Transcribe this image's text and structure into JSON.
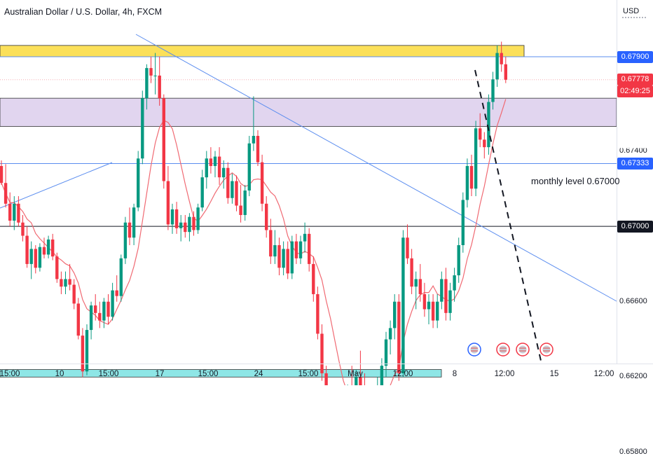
{
  "header": {
    "title": "Australian Dollar / U.S. Dollar, 4h, FXCM",
    "currency": "USD"
  },
  "price_axis": {
    "ticks": [
      {
        "value": 0.679,
        "label": "0.67900",
        "bg": "#2962ff"
      },
      {
        "value": 0.67778,
        "label": "0.67778",
        "bg": "#f23645"
      },
      {
        "value": 0.67333,
        "label": "0.67333",
        "bg": "#2962ff"
      },
      {
        "value": 0.67,
        "label": "0.67000",
        "bg": "#131722"
      },
      {
        "value": 0.666,
        "label": "0.66600",
        "bg": ""
      },
      {
        "value": 0.662,
        "label": "0.66200",
        "bg": ""
      },
      {
        "value": 0.658,
        "label": "0.65800",
        "bg": ""
      }
    ],
    "partial_label": "0.67400",
    "countdown": "02:49:25"
  },
  "time_axis": [
    "15:00",
    "10",
    "15:00",
    "17",
    "15:00",
    "24",
    "15:00",
    "May",
    "12:00",
    "8",
    "12:00",
    "15",
    "12:00"
  ],
  "annotations": {
    "monthly_level": "monthly level 0.67000"
  },
  "colors": {
    "up": "#089981",
    "down": "#f23645",
    "ma": "#f06a73",
    "trend": "#5b8def",
    "resistance_zone": "#fbe05a",
    "mid_zone": "#e1d5ef",
    "support_zone": "#8ee6e6"
  },
  "chart_data": {
    "type": "candlestick",
    "symbol": "AUDUSD",
    "timeframe": "4h",
    "ylim": [
      0.656,
      0.6825
    ],
    "levels": [
      0.679,
      0.67778,
      0.67333,
      0.67
    ],
    "zones": [
      {
        "name": "resistance",
        "from": 0.679,
        "to": 0.6796
      },
      {
        "name": "range",
        "from": 0.6753,
        "to": 0.6768
      },
      {
        "name": "support",
        "from": 0.662,
        "to": 0.6624
      }
    ],
    "candles": [
      [
        0.6732,
        0.6735,
        0.6722,
        0.6723
      ],
      [
        0.6723,
        0.6733,
        0.671,
        0.6712
      ],
      [
        0.6712,
        0.6718,
        0.67,
        0.6703
      ],
      [
        0.6703,
        0.6716,
        0.6698,
        0.6712
      ],
      [
        0.6712,
        0.6716,
        0.67,
        0.6702
      ],
      [
        0.6702,
        0.6706,
        0.6692,
        0.6695
      ],
      [
        0.6695,
        0.67,
        0.6678,
        0.668
      ],
      [
        0.668,
        0.6692,
        0.6672,
        0.6688
      ],
      [
        0.6688,
        0.669,
        0.6675,
        0.6678
      ],
      [
        0.6678,
        0.6691,
        0.6676,
        0.6689
      ],
      [
        0.6689,
        0.6694,
        0.6683,
        0.6685
      ],
      [
        0.6685,
        0.6695,
        0.6683,
        0.6693
      ],
      [
        0.6693,
        0.6696,
        0.6682,
        0.6684
      ],
      [
        0.6684,
        0.6686,
        0.667,
        0.6672
      ],
      [
        0.6672,
        0.6676,
        0.6664,
        0.6668
      ],
      [
        0.6668,
        0.6676,
        0.6664,
        0.6672
      ],
      [
        0.6672,
        0.668,
        0.6666,
        0.6669
      ],
      [
        0.6669,
        0.6672,
        0.6656,
        0.6659
      ],
      [
        0.6659,
        0.6662,
        0.664,
        0.6642
      ],
      [
        0.6642,
        0.6646,
        0.662,
        0.6623
      ],
      [
        0.6623,
        0.6648,
        0.6621,
        0.6645
      ],
      [
        0.6645,
        0.666,
        0.664,
        0.6658
      ],
      [
        0.6658,
        0.6664,
        0.665,
        0.6654
      ],
      [
        0.6654,
        0.666,
        0.6646,
        0.665
      ],
      [
        0.665,
        0.6662,
        0.6646,
        0.666
      ],
      [
        0.666,
        0.6664,
        0.6648,
        0.6652
      ],
      [
        0.6652,
        0.667,
        0.665,
        0.6666
      ],
      [
        0.6666,
        0.6674,
        0.666,
        0.6663
      ],
      [
        0.6663,
        0.6685,
        0.666,
        0.6683
      ],
      [
        0.6683,
        0.6705,
        0.668,
        0.6702
      ],
      [
        0.6702,
        0.671,
        0.669,
        0.6694
      ],
      [
        0.6694,
        0.6712,
        0.669,
        0.671
      ],
      [
        0.671,
        0.674,
        0.6708,
        0.6736
      ],
      [
        0.6736,
        0.6772,
        0.6733,
        0.6768
      ],
      [
        0.6768,
        0.6786,
        0.6762,
        0.6784
      ],
      [
        0.6784,
        0.679,
        0.6776,
        0.678
      ],
      [
        0.678,
        0.6792,
        0.677,
        0.678
      ],
      [
        0.678,
        0.679,
        0.6764,
        0.6768
      ],
      [
        0.6768,
        0.677,
        0.672,
        0.6724
      ],
      [
        0.6724,
        0.6732,
        0.6698,
        0.6701
      ],
      [
        0.6701,
        0.6712,
        0.6696,
        0.6709
      ],
      [
        0.6709,
        0.6713,
        0.6696,
        0.6699
      ],
      [
        0.6699,
        0.6706,
        0.6692,
        0.6702
      ],
      [
        0.6702,
        0.6706,
        0.6694,
        0.6697
      ],
      [
        0.6697,
        0.6707,
        0.6692,
        0.6705
      ],
      [
        0.6705,
        0.6708,
        0.6695,
        0.6698
      ],
      [
        0.6698,
        0.6712,
        0.6696,
        0.671
      ],
      [
        0.671,
        0.673,
        0.6708,
        0.6726
      ],
      [
        0.6726,
        0.674,
        0.672,
        0.6736
      ],
      [
        0.6736,
        0.6742,
        0.6728,
        0.6732
      ],
      [
        0.6732,
        0.674,
        0.6726,
        0.6737
      ],
      [
        0.6737,
        0.6742,
        0.6722,
        0.6726
      ],
      [
        0.6726,
        0.6735,
        0.672,
        0.6731
      ],
      [
        0.6731,
        0.6734,
        0.6712,
        0.6715
      ],
      [
        0.6715,
        0.6728,
        0.6712,
        0.6724
      ],
      [
        0.6724,
        0.6727,
        0.6708,
        0.6711
      ],
      [
        0.6711,
        0.6722,
        0.6702,
        0.6706
      ],
      [
        0.6706,
        0.6722,
        0.6703,
        0.6719
      ],
      [
        0.6719,
        0.6748,
        0.6716,
        0.6744
      ],
      [
        0.6744,
        0.6769,
        0.674,
        0.6748
      ],
      [
        0.6748,
        0.6751,
        0.6732,
        0.6734
      ],
      [
        0.6734,
        0.6738,
        0.6708,
        0.6712
      ],
      [
        0.6712,
        0.6716,
        0.6694,
        0.6698
      ],
      [
        0.6698,
        0.6704,
        0.668,
        0.6684
      ],
      [
        0.6684,
        0.6698,
        0.668,
        0.669
      ],
      [
        0.669,
        0.6694,
        0.6674,
        0.6678
      ],
      [
        0.6678,
        0.6692,
        0.6674,
        0.6688
      ],
      [
        0.6688,
        0.6692,
        0.6672,
        0.6675
      ],
      [
        0.6675,
        0.6695,
        0.6672,
        0.6692
      ],
      [
        0.6692,
        0.6696,
        0.668,
        0.6683
      ],
      [
        0.6683,
        0.6695,
        0.668,
        0.6692
      ],
      [
        0.6692,
        0.6702,
        0.6686,
        0.6696
      ],
      [
        0.6696,
        0.6699,
        0.6676,
        0.668
      ],
      [
        0.668,
        0.6684,
        0.666,
        0.6664
      ],
      [
        0.6664,
        0.6668,
        0.664,
        0.6643
      ],
      [
        0.6643,
        0.6648,
        0.6618,
        0.6622
      ],
      [
        0.6622,
        0.6626,
        0.66,
        0.6604
      ],
      [
        0.6604,
        0.6614,
        0.6598,
        0.6608
      ],
      [
        0.6608,
        0.6614,
        0.6596,
        0.66
      ],
      [
        0.66,
        0.6612,
        0.6592,
        0.6606
      ],
      [
        0.6606,
        0.661,
        0.6594,
        0.6598
      ],
      [
        0.6598,
        0.6616,
        0.6596,
        0.6612
      ],
      [
        0.6612,
        0.6626,
        0.6606,
        0.6608
      ],
      [
        0.6608,
        0.6624,
        0.6604,
        0.662
      ],
      [
        0.662,
        0.6634,
        0.661,
        0.6614
      ],
      [
        0.6614,
        0.6622,
        0.6592,
        0.6596
      ],
      [
        0.6596,
        0.6608,
        0.6578,
        0.6582
      ],
      [
        0.6582,
        0.6612,
        0.6576,
        0.6608
      ],
      [
        0.6608,
        0.662,
        0.6604,
        0.6613
      ],
      [
        0.6613,
        0.663,
        0.661,
        0.6626
      ],
      [
        0.6626,
        0.6644,
        0.662,
        0.664
      ],
      [
        0.664,
        0.665,
        0.6632,
        0.6646
      ],
      [
        0.6646,
        0.6664,
        0.664,
        0.666
      ],
      [
        0.666,
        0.6664,
        0.6618,
        0.6622
      ],
      [
        0.6622,
        0.6698,
        0.662,
        0.6694
      ],
      [
        0.6694,
        0.6701,
        0.668,
        0.6683
      ],
      [
        0.6683,
        0.6688,
        0.6664,
        0.6668
      ],
      [
        0.6668,
        0.6676,
        0.6656,
        0.6672
      ],
      [
        0.6672,
        0.668,
        0.666,
        0.6664
      ],
      [
        0.6664,
        0.667,
        0.6652,
        0.6656
      ],
      [
        0.6656,
        0.6664,
        0.6648,
        0.666
      ],
      [
        0.666,
        0.6664,
        0.6646,
        0.665
      ],
      [
        0.665,
        0.6664,
        0.6646,
        0.666
      ],
      [
        0.666,
        0.6676,
        0.6656,
        0.6672
      ],
      [
        0.6672,
        0.6678,
        0.665,
        0.6654
      ],
      [
        0.6654,
        0.667,
        0.665,
        0.6666
      ],
      [
        0.6666,
        0.6678,
        0.666,
        0.6674
      ],
      [
        0.6674,
        0.6694,
        0.667,
        0.669
      ],
      [
        0.669,
        0.6718,
        0.6686,
        0.6714
      ],
      [
        0.6714,
        0.6736,
        0.671,
        0.6732
      ],
      [
        0.6732,
        0.6738,
        0.6716,
        0.672
      ],
      [
        0.672,
        0.6756,
        0.6716,
        0.6752
      ],
      [
        0.6752,
        0.676,
        0.6742,
        0.6746
      ],
      [
        0.6746,
        0.675,
        0.6736,
        0.6742
      ],
      [
        0.6742,
        0.677,
        0.6738,
        0.6766
      ],
      [
        0.6766,
        0.6782,
        0.6762,
        0.6778
      ],
      [
        0.6778,
        0.6796,
        0.6774,
        0.6792
      ],
      [
        0.6792,
        0.6798,
        0.6782,
        0.6786
      ],
      [
        0.6786,
        0.679,
        0.6776,
        0.67778
      ]
    ]
  }
}
